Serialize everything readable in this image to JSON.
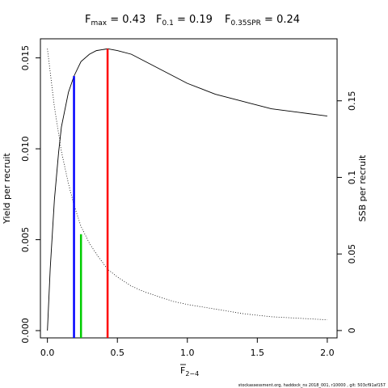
{
  "chart_data": {
    "type": "line",
    "title": "",
    "header_stats": [
      {
        "name": "F",
        "sub": "max",
        "eq": " = ",
        "value": "0.43"
      },
      {
        "name": "F",
        "sub": "0.1",
        "eq": " = ",
        "value": "0.19"
      },
      {
        "name": "F",
        "sub": "0.35SPR",
        "eq": " = ",
        "value": "0.24"
      }
    ],
    "xlabel": {
      "text": "F",
      "sub": "2−4"
    },
    "ylabel_left": "Yield per recruit",
    "ylabel_right": "SSB per recruit",
    "xlim": [
      -0.05,
      2.07
    ],
    "ylim_left": [
      -0.0004,
      0.01605
    ],
    "ylim_right": [
      -0.0048,
      0.1905
    ],
    "x_ticks": [
      {
        "value": 0.0,
        "label": "0.0"
      },
      {
        "value": 0.5,
        "label": "0.5"
      },
      {
        "value": 1.0,
        "label": "1.0"
      },
      {
        "value": 1.5,
        "label": "1.5"
      },
      {
        "value": 2.0,
        "label": "2.0"
      }
    ],
    "y_ticks_left": [
      {
        "value": 0.0,
        "label": "0.000"
      },
      {
        "value": 0.005,
        "label": "0.005"
      },
      {
        "value": 0.01,
        "label": "0.010"
      },
      {
        "value": 0.015,
        "label": "0.015"
      }
    ],
    "y_ticks_right": [
      {
        "value": 0.0,
        "label": "0"
      },
      {
        "value": 0.05,
        "label": "0.05"
      },
      {
        "value": 0.1,
        "label": "0.1"
      },
      {
        "value": 0.15,
        "label": "0.15"
      }
    ],
    "series": [
      {
        "axis": "left",
        "style": "solid",
        "color": "#000000",
        "x": [
          0.0,
          0.02,
          0.05,
          0.08,
          0.1,
          0.15,
          0.19,
          0.24,
          0.3,
          0.35,
          0.43,
          0.5,
          0.6,
          0.7,
          0.8,
          0.9,
          1.0,
          1.1,
          1.2,
          1.3,
          1.4,
          1.5,
          1.6,
          1.7,
          1.8,
          1.9,
          2.0
        ],
        "y": [
          0.0,
          0.0034,
          0.0072,
          0.0098,
          0.0112,
          0.0131,
          0.014,
          0.0148,
          0.0152,
          0.0154,
          0.0155,
          0.0154,
          0.0152,
          0.0148,
          0.0144,
          0.014,
          0.0136,
          0.0133,
          0.013,
          0.0128,
          0.0126,
          0.0124,
          0.0122,
          0.0121,
          0.012,
          0.0119,
          0.0118
        ]
      },
      {
        "axis": "right",
        "style": "dotted",
        "color": "#000000",
        "x": [
          0.0,
          0.05,
          0.1,
          0.15,
          0.19,
          0.24,
          0.3,
          0.35,
          0.43,
          0.5,
          0.6,
          0.7,
          0.8,
          0.9,
          1.0,
          1.2,
          1.4,
          1.6,
          1.8,
          2.0
        ],
        "y": [
          0.184,
          0.146,
          0.117,
          0.096,
          0.082,
          0.068,
          0.057,
          0.05,
          0.04,
          0.035,
          0.029,
          0.025,
          0.022,
          0.019,
          0.017,
          0.014,
          0.011,
          0.009,
          0.008,
          0.007
        ]
      }
    ],
    "reference_lines": [
      {
        "name": "F0.1",
        "x": 0.19,
        "y_top": 0.014,
        "color": "#0000ff"
      },
      {
        "name": "F0.35SPR",
        "x": 0.24,
        "y_top": 0.0053,
        "color": "#00cc00"
      },
      {
        "name": "Fmax",
        "x": 0.43,
        "y_top": 0.0155,
        "color": "#ff0000"
      }
    ],
    "grid": false,
    "legend": "none"
  },
  "footer_note": "stockassessment.org,  haddock_ns  2018_001, r10000 ,  git: 503cf91af157"
}
